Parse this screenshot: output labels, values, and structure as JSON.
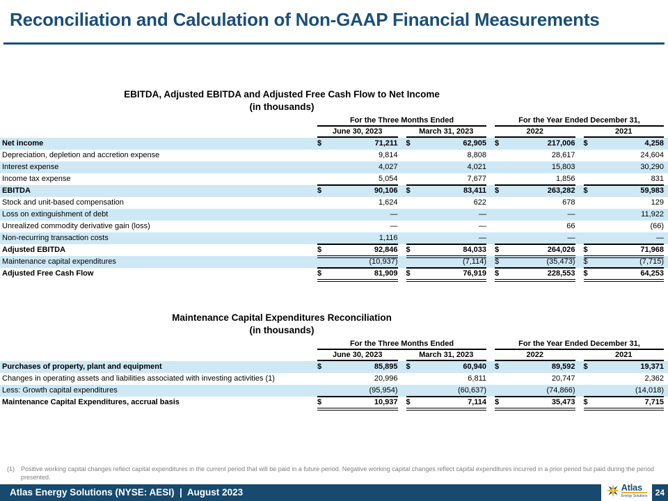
{
  "slide": {
    "title": "Reconciliation and Calculation of Non-GAAP Financial Measurements"
  },
  "colors": {
    "accent_navy": "#1B4E79",
    "footer_navy": "#174A6E",
    "row_band_blue": "#CEE8F5",
    "logo_gold": "#F0B01F",
    "footnote_gray": "#808080"
  },
  "tables": [
    {
      "title": "EBITDA, Adjusted EBITDA and Adjusted Free Cash Flow to Net Income",
      "subtitle": "(in thousands)",
      "column_groups": [
        "For the Three Months Ended",
        "For the Year Ended December 31,"
      ],
      "columns": [
        "June 30, 2023",
        "March 31, 2023",
        "2022",
        "2021"
      ],
      "rows": [
        {
          "label": "Net income",
          "bold": true,
          "band": true,
          "underline": "",
          "cells": [
            [
              "$",
              "71,211"
            ],
            [
              "$",
              "62,905"
            ],
            [
              "$",
              "217,006"
            ],
            [
              "$",
              "4,258"
            ]
          ]
        },
        {
          "label": "Depreciation, depletion and accretion expense",
          "bold": false,
          "band": false,
          "underline": "",
          "cells": [
            [
              "",
              "9,814"
            ],
            [
              "",
              "8,808"
            ],
            [
              "",
              "28,617"
            ],
            [
              "",
              "24,604"
            ]
          ]
        },
        {
          "label": "Interest expense",
          "bold": false,
          "band": true,
          "underline": "",
          "cells": [
            [
              "",
              "4,027"
            ],
            [
              "",
              "4,021"
            ],
            [
              "",
              "15,803"
            ],
            [
              "",
              "30,290"
            ]
          ]
        },
        {
          "label": "Income tax expense",
          "bold": false,
          "band": false,
          "underline": "single",
          "cells": [
            [
              "",
              "5,054"
            ],
            [
              "",
              "7,677"
            ],
            [
              "",
              "1,856"
            ],
            [
              "",
              "831"
            ]
          ]
        },
        {
          "label": "EBITDA",
          "bold": true,
          "band": true,
          "underline": "",
          "cells": [
            [
              "$",
              "90,106"
            ],
            [
              "$",
              "83,411"
            ],
            [
              "$",
              "263,282"
            ],
            [
              "$",
              "59,983"
            ]
          ]
        },
        {
          "label": "Stock and unit-based compensation",
          "bold": false,
          "band": false,
          "underline": "",
          "cells": [
            [
              "",
              "1,624"
            ],
            [
              "",
              "622"
            ],
            [
              "",
              "678"
            ],
            [
              "",
              "129"
            ]
          ]
        },
        {
          "label": "Loss on extinguishment of debt",
          "bold": false,
          "band": true,
          "underline": "",
          "cells": [
            [
              "",
              "—"
            ],
            [
              "",
              "—"
            ],
            [
              "",
              "—"
            ],
            [
              "",
              "11,922"
            ]
          ]
        },
        {
          "label": "Unrealized commodity derivative gain (loss)",
          "bold": false,
          "band": false,
          "underline": "",
          "cells": [
            [
              "",
              "—"
            ],
            [
              "",
              "—"
            ],
            [
              "",
              "66"
            ],
            [
              "",
              "(66)"
            ]
          ]
        },
        {
          "label": "Non-recurring transaction costs",
          "bold": false,
          "band": true,
          "underline": "single",
          "cells": [
            [
              "",
              "1,116"
            ],
            [
              "",
              "—"
            ],
            [
              "",
              "—"
            ],
            [
              "",
              "—"
            ]
          ]
        },
        {
          "label": "Adjusted EBITDA",
          "bold": true,
          "band": false,
          "underline": "double",
          "cells": [
            [
              "$",
              "92,846"
            ],
            [
              "$",
              "84,033"
            ],
            [
              "$",
              "264,026"
            ],
            [
              "$",
              "71,968"
            ]
          ]
        },
        {
          "label": "Maintenance capital expenditures",
          "bold": false,
          "band": true,
          "underline": "single",
          "cells": [
            [
              "",
              "(10,937)"
            ],
            [
              "",
              "(7,114)"
            ],
            [
              "$",
              "(35,473)"
            ],
            [
              "$",
              "(7,715)"
            ]
          ]
        },
        {
          "label": "Adjusted Free Cash Flow",
          "bold": true,
          "band": false,
          "underline": "double",
          "cells": [
            [
              "$",
              "81,909"
            ],
            [
              "$",
              "76,919"
            ],
            [
              "$",
              "228,553"
            ],
            [
              "$",
              "64,253"
            ]
          ]
        }
      ]
    },
    {
      "title": "Maintenance Capital Expenditures Reconciliation",
      "subtitle": "(in thousands)",
      "column_groups": [
        "For the Three Months Ended",
        "For the Year Ended December 31,"
      ],
      "columns": [
        "June 30, 2023",
        "March 31, 2023",
        "2022",
        "2021"
      ],
      "rows": [
        {
          "label": "Purchases of property, plant and equipment",
          "bold": true,
          "band": true,
          "underline": "",
          "cells": [
            [
              "$",
              "85,895"
            ],
            [
              "$",
              "60,940"
            ],
            [
              "$",
              "89,592"
            ],
            [
              "$",
              "19,371"
            ]
          ]
        },
        {
          "label": "Changes in operating assets and liabilities associated with investing activities (1)",
          "bold": false,
          "band": false,
          "underline": "",
          "cells": [
            [
              "",
              "20,996"
            ],
            [
              "",
              "6,811"
            ],
            [
              "",
              "20,747"
            ],
            [
              "",
              "2,362"
            ]
          ]
        },
        {
          "label": "Less: Growth capital expenditures",
          "bold": false,
          "band": true,
          "underline": "single",
          "cells": [
            [
              "",
              "(95,954)"
            ],
            [
              "",
              "(60,637)"
            ],
            [
              "",
              "(74,866)"
            ],
            [
              "",
              "(14,018)"
            ]
          ]
        },
        {
          "label": "Maintenance Capital Expenditures, accrual basis",
          "bold": true,
          "band": false,
          "underline": "double",
          "cells": [
            [
              "$",
              "10,937"
            ],
            [
              "$",
              "7,114"
            ],
            [
              "$",
              "35,473"
            ],
            [
              "$",
              "7,715"
            ]
          ]
        }
      ]
    }
  ],
  "footnote": {
    "marker": "(1)",
    "text": "Positive working capital changes reflect capital expenditures in the current period that will be paid in a future period. Negative working capital changes reflect capital expenditures incurred in a prior period but paid during the period presented."
  },
  "footer": {
    "text": "Atlas Energy Solutions (NYSE: AESI)  |  August 2023",
    "logo": {
      "name": "Atlas",
      "subtitle": "Energy Solutions"
    },
    "page_number": "24"
  }
}
